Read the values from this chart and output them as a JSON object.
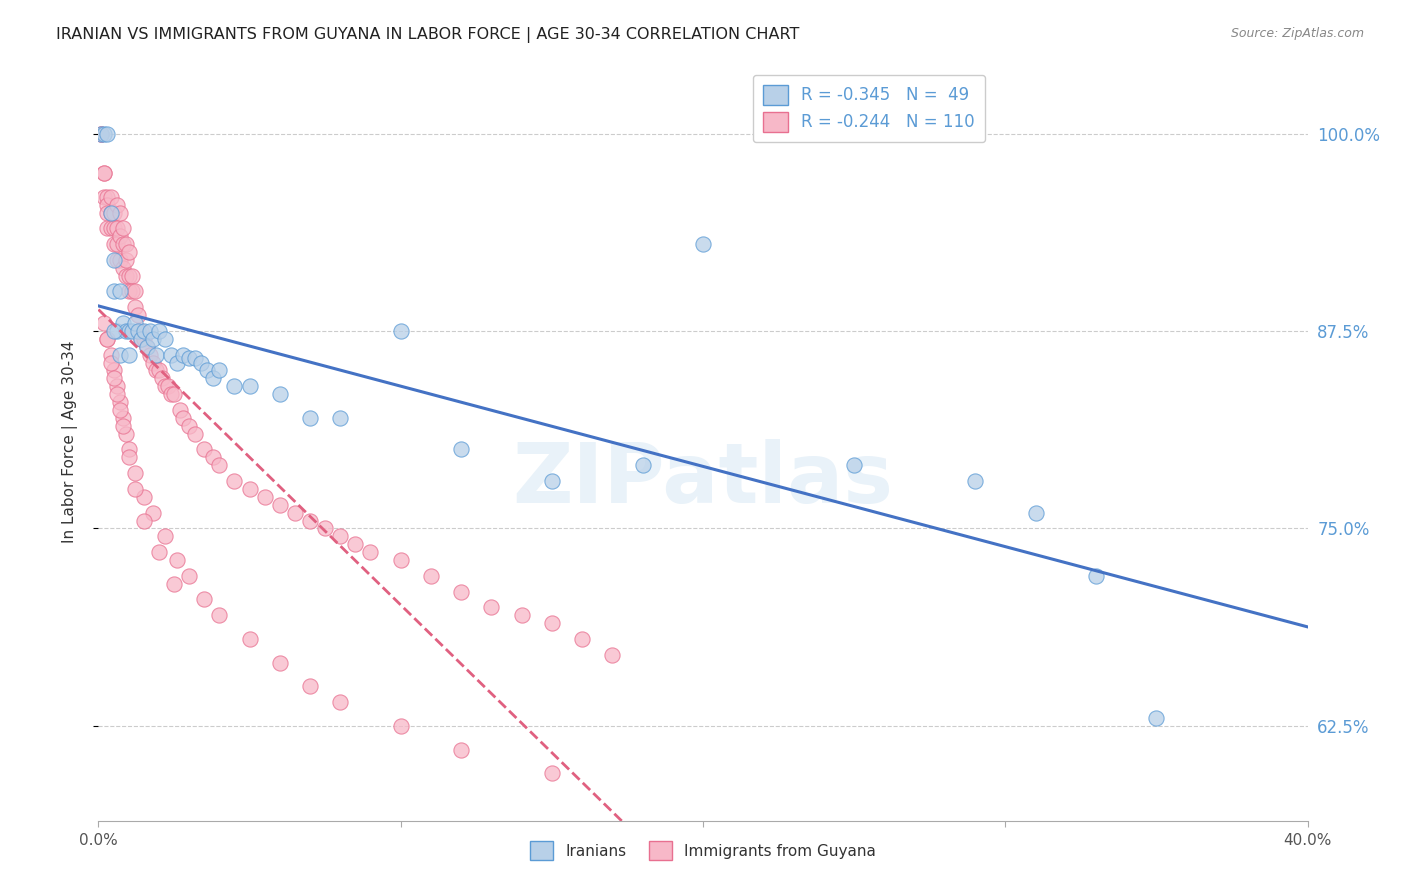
{
  "title": "IRANIAN VS IMMIGRANTS FROM GUYANA IN LABOR FORCE | AGE 30-34 CORRELATION CHART",
  "source": "Source: ZipAtlas.com",
  "ylabel": "In Labor Force | Age 30-34",
  "ytick_vals": [
    0.625,
    0.75,
    0.875,
    1.0
  ],
  "ytick_labels": [
    "62.5%",
    "75.0%",
    "87.5%",
    "100.0%"
  ],
  "xmin": 0.0,
  "xmax": 0.4,
  "ymin": 0.565,
  "ymax": 1.045,
  "legend_r_blue": "R = -0.345",
  "legend_n_blue": "N =  49",
  "legend_r_pink": "R = -0.244",
  "legend_n_pink": "N = 110",
  "blue_fill": "#b8d0e8",
  "pink_fill": "#f7b8c8",
  "blue_edge": "#5b9bd5",
  "pink_edge": "#e87090",
  "blue_line": "#4472c4",
  "pink_line": "#e06080",
  "watermark": "ZIPatlas",
  "iranians_x": [
    0.001,
    0.002,
    0.003,
    0.004,
    0.005,
    0.005,
    0.006,
    0.007,
    0.007,
    0.008,
    0.009,
    0.01,
    0.01,
    0.011,
    0.012,
    0.013,
    0.014,
    0.015,
    0.016,
    0.017,
    0.018,
    0.019,
    0.02,
    0.022,
    0.024,
    0.026,
    0.028,
    0.03,
    0.032,
    0.034,
    0.036,
    0.038,
    0.04,
    0.045,
    0.05,
    0.06,
    0.07,
    0.08,
    0.1,
    0.12,
    0.15,
    0.18,
    0.2,
    0.25,
    0.29,
    0.31,
    0.33,
    0.35,
    0.005
  ],
  "iranians_y": [
    1.0,
    1.0,
    1.0,
    0.95,
    0.92,
    0.9,
    0.875,
    0.9,
    0.86,
    0.88,
    0.875,
    0.875,
    0.86,
    0.875,
    0.88,
    0.875,
    0.87,
    0.875,
    0.865,
    0.875,
    0.87,
    0.86,
    0.875,
    0.87,
    0.86,
    0.855,
    0.86,
    0.858,
    0.858,
    0.855,
    0.85,
    0.845,
    0.85,
    0.84,
    0.84,
    0.835,
    0.82,
    0.82,
    0.875,
    0.8,
    0.78,
    0.79,
    0.93,
    0.79,
    0.78,
    0.76,
    0.72,
    0.63,
    0.875
  ],
  "guyana_x": [
    0.001,
    0.001,
    0.002,
    0.002,
    0.002,
    0.003,
    0.003,
    0.003,
    0.003,
    0.004,
    0.004,
    0.004,
    0.005,
    0.005,
    0.005,
    0.006,
    0.006,
    0.006,
    0.006,
    0.007,
    0.007,
    0.007,
    0.008,
    0.008,
    0.008,
    0.009,
    0.009,
    0.009,
    0.01,
    0.01,
    0.01,
    0.011,
    0.011,
    0.012,
    0.012,
    0.013,
    0.013,
    0.014,
    0.014,
    0.015,
    0.016,
    0.017,
    0.018,
    0.019,
    0.02,
    0.021,
    0.022,
    0.023,
    0.024,
    0.025,
    0.027,
    0.028,
    0.03,
    0.032,
    0.035,
    0.038,
    0.04,
    0.045,
    0.05,
    0.055,
    0.06,
    0.065,
    0.07,
    0.075,
    0.08,
    0.085,
    0.09,
    0.1,
    0.11,
    0.12,
    0.13,
    0.14,
    0.15,
    0.16,
    0.17,
    0.002,
    0.003,
    0.004,
    0.005,
    0.006,
    0.007,
    0.008,
    0.009,
    0.01,
    0.012,
    0.015,
    0.018,
    0.022,
    0.026,
    0.03,
    0.035,
    0.04,
    0.05,
    0.06,
    0.07,
    0.08,
    0.1,
    0.12,
    0.15,
    0.003,
    0.004,
    0.005,
    0.006,
    0.007,
    0.008,
    0.01,
    0.012,
    0.015,
    0.02,
    0.025
  ],
  "guyana_y": [
    1.0,
    1.0,
    0.975,
    0.975,
    0.96,
    0.96,
    0.955,
    0.95,
    0.94,
    0.96,
    0.95,
    0.94,
    0.95,
    0.94,
    0.93,
    0.955,
    0.94,
    0.93,
    0.92,
    0.95,
    0.935,
    0.92,
    0.94,
    0.93,
    0.915,
    0.93,
    0.92,
    0.91,
    0.925,
    0.91,
    0.9,
    0.91,
    0.9,
    0.9,
    0.89,
    0.885,
    0.875,
    0.875,
    0.87,
    0.87,
    0.865,
    0.86,
    0.855,
    0.85,
    0.85,
    0.845,
    0.84,
    0.84,
    0.835,
    0.835,
    0.825,
    0.82,
    0.815,
    0.81,
    0.8,
    0.795,
    0.79,
    0.78,
    0.775,
    0.77,
    0.765,
    0.76,
    0.755,
    0.75,
    0.745,
    0.74,
    0.735,
    0.73,
    0.72,
    0.71,
    0.7,
    0.695,
    0.69,
    0.68,
    0.67,
    0.88,
    0.87,
    0.86,
    0.85,
    0.84,
    0.83,
    0.82,
    0.81,
    0.8,
    0.785,
    0.77,
    0.76,
    0.745,
    0.73,
    0.72,
    0.705,
    0.695,
    0.68,
    0.665,
    0.65,
    0.64,
    0.625,
    0.61,
    0.595,
    0.87,
    0.855,
    0.845,
    0.835,
    0.825,
    0.815,
    0.795,
    0.775,
    0.755,
    0.735,
    0.715
  ]
}
